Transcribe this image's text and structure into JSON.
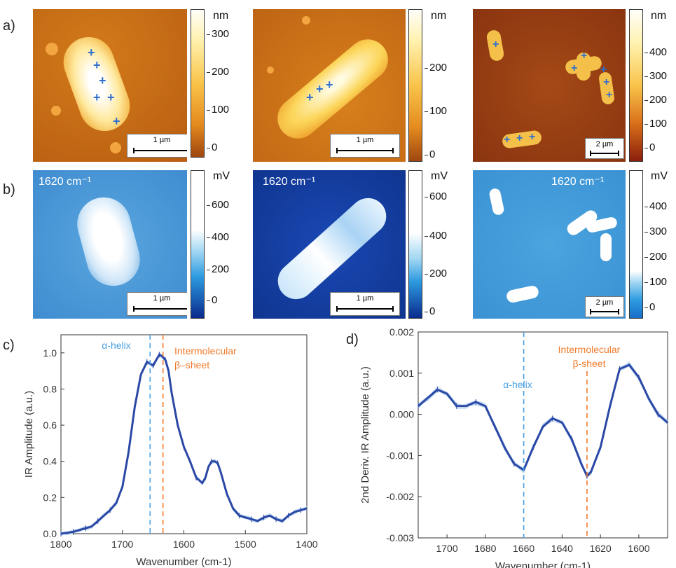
{
  "panel_labels": {
    "a": "a)",
    "b": "b)",
    "c": "c)",
    "d": "d)"
  },
  "afm_maps": [
    {
      "scale_label": "1 µm",
      "colorbar": {
        "unit": "nm",
        "ticks": [
          "300",
          "200",
          "100",
          "0"
        ]
      }
    },
    {
      "scale_label": "1 µm",
      "colorbar": {
        "unit": "nm",
        "ticks": [
          "200",
          "100",
          "0"
        ]
      }
    },
    {
      "scale_label": "2 µm",
      "colorbar": {
        "unit": "nm",
        "ticks": [
          "400",
          "300",
          "200",
          "100",
          "0"
        ]
      }
    }
  ],
  "ir_maps": [
    {
      "label": "1620 cm⁻¹",
      "scale_label": "1 µm",
      "colorbar": {
        "unit": "mV",
        "ticks": [
          "600",
          "400",
          "200",
          "0"
        ]
      }
    },
    {
      "label": "1620 cm⁻¹",
      "scale_label": "1 µm",
      "colorbar": {
        "unit": "mV",
        "ticks": [
          "600",
          "400",
          "200",
          "0"
        ]
      }
    },
    {
      "label": "1620 cm⁻¹",
      "scale_label": "2 µm",
      "colorbar": {
        "unit": "mV",
        "ticks": [
          "400",
          "300",
          "200",
          "100",
          "0"
        ]
      }
    }
  ],
  "colors": {
    "afm_low": "#a04a10",
    "afm_mid": "#e8951e",
    "afm_high": "#fffbea",
    "ir_low": "#0a2a8c",
    "ir_mid": "#3aa0e0",
    "ir_high": "#ffffff",
    "mean_line": "#2b48a6",
    "replicate_line": "#b9d5f0",
    "alpha_marker": "#4a9fe0",
    "beta_marker": "#f07a2a"
  },
  "chart_data": [
    {
      "type": "line",
      "xlabel": "Wavenumber (cm-1)",
      "ylabel": "IR Amplitude (a.u.)",
      "xlim": [
        1800,
        1400
      ],
      "ylim": [
        0.0,
        1.1
      ],
      "xticks": [
        "1800",
        "1700",
        "1600",
        "1500",
        "1400"
      ],
      "yticks": [
        "0.0",
        "0.2",
        "0.4",
        "0.6",
        "0.8",
        "1.0"
      ],
      "annotations": [
        {
          "text": "α-helix",
          "x": 1655,
          "color": "alpha"
        },
        {
          "text": "Intermolecular",
          "x": 1634,
          "color": "beta"
        },
        {
          "text": "β–sheet",
          "x": 1634,
          "color": "beta"
        }
      ],
      "series": [
        {
          "x": [
            1800,
            1790,
            1780,
            1770,
            1760,
            1750,
            1740,
            1730,
            1720,
            1710,
            1700,
            1690,
            1680,
            1670,
            1660,
            1655,
            1650,
            1645,
            1640,
            1635,
            1630,
            1625,
            1620,
            1610,
            1600,
            1590,
            1580,
            1570,
            1565,
            1560,
            1555,
            1550,
            1545,
            1540,
            1530,
            1520,
            1510,
            1500,
            1490,
            1480,
            1470,
            1460,
            1450,
            1440,
            1430,
            1420,
            1410,
            1400
          ],
          "y": [
            0.0,
            0.005,
            0.01,
            0.02,
            0.03,
            0.04,
            0.07,
            0.1,
            0.13,
            0.17,
            0.26,
            0.45,
            0.7,
            0.88,
            0.95,
            0.94,
            0.93,
            0.96,
            0.99,
            0.98,
            0.96,
            0.9,
            0.78,
            0.6,
            0.48,
            0.4,
            0.31,
            0.28,
            0.31,
            0.37,
            0.4,
            0.4,
            0.39,
            0.34,
            0.22,
            0.14,
            0.1,
            0.09,
            0.08,
            0.07,
            0.09,
            0.1,
            0.08,
            0.07,
            0.1,
            0.12,
            0.13,
            0.14
          ]
        }
      ]
    },
    {
      "type": "line",
      "xlabel": "Wavenumber (cm-1)",
      "ylabel": "2nd Deriv. IR Amplitude (a.u.)",
      "xlim": [
        1715,
        1585
      ],
      "ylim": [
        -0.003,
        0.002
      ],
      "xticks": [
        "1700",
        "1680",
        "1660",
        "1640",
        "1620",
        "1600"
      ],
      "yticks": [
        "-0.003",
        "-0.002",
        "-0.001",
        "0.000",
        "0.001",
        "0.002"
      ],
      "annotations": [
        {
          "text": "α-helix",
          "x": 1660,
          "color": "alpha"
        },
        {
          "text": "Intermolecular",
          "x": 1627,
          "color": "beta"
        },
        {
          "text": "β-sheet",
          "x": 1627,
          "color": "beta"
        }
      ],
      "series": [
        {
          "x": [
            1715,
            1710,
            1705,
            1700,
            1695,
            1690,
            1685,
            1680,
            1675,
            1670,
            1665,
            1660,
            1655,
            1650,
            1645,
            1640,
            1635,
            1630,
            1627,
            1625,
            1620,
            1615,
            1610,
            1605,
            1600,
            1595,
            1590,
            1585
          ],
          "y": [
            0.0002,
            0.0004,
            0.0006,
            0.0005,
            0.0002,
            0.0002,
            0.0003,
            0.0002,
            -0.0003,
            -0.0008,
            -0.0012,
            -0.00135,
            -0.0008,
            -0.0003,
            -0.0001,
            -0.0002,
            -0.0006,
            -0.0012,
            -0.0015,
            -0.0014,
            -0.0008,
            0.0002,
            0.0011,
            0.0012,
            0.0009,
            0.0004,
            0.0,
            -0.0002
          ]
        }
      ]
    }
  ]
}
